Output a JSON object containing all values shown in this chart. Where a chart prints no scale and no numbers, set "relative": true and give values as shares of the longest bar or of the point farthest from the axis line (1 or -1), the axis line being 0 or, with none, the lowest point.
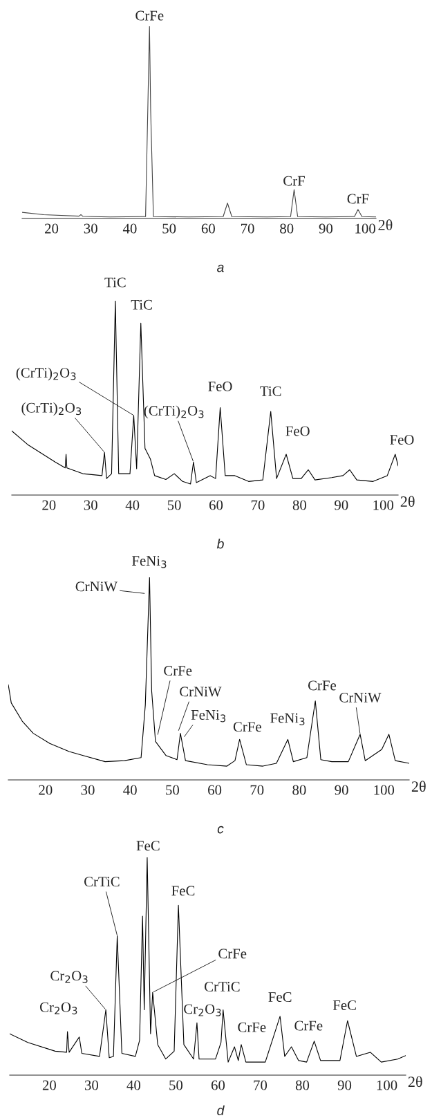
{
  "chart_data": [
    {
      "type": "line",
      "relative": true,
      "xlabel": "2θ",
      "xlim": [
        12.5,
        102.8
      ],
      "xticks": [
        20,
        30,
        40,
        50,
        60,
        70,
        80,
        90,
        100
      ],
      "series": [
        {
          "color": "#444444",
          "x": [
            12.5,
            18,
            27,
            27.5,
            28,
            35,
            43.5,
            44.0,
            44.6,
            45.0,
            45.3,
            46.0,
            55,
            63.8,
            64.9,
            66.0,
            75,
            81.0,
            81.9,
            82.8,
            90,
            97.3,
            98.2,
            99.2,
            102.8
          ],
          "values": [
            0.032,
            0.02,
            0.012,
            0.02,
            0.011,
            0.008,
            0.01,
            0.01,
            0.6,
            1.0,
            0.56,
            0.01,
            0.008,
            0.01,
            0.08,
            0.01,
            0.008,
            0.01,
            0.15,
            0.01,
            0.008,
            0.01,
            0.047,
            0.01,
            0.008
          ]
        }
      ],
      "annotations": [
        {
          "text": "CrFe",
          "x": 45.0,
          "y": 1.0
        },
        {
          "text": "CrF",
          "x": 81.9,
          "y": 0.15
        },
        {
          "text": "CrF",
          "x": 98.2,
          "y": 0.047
        },
        "a"
      ]
    },
    {
      "type": "line",
      "relative": true,
      "xlabel": "2θ",
      "xlim": [
        11.1,
        103.6
      ],
      "xticks": [
        20,
        30,
        40,
        50,
        60,
        70,
        80,
        90,
        100
      ],
      "series": [
        {
          "color": "#000000",
          "x": [
            11.1,
            14.9,
            21.5,
            23.9,
            24.1,
            24.3,
            28.1,
            32.7,
            33.3,
            33.8,
            35.0,
            35.9,
            36.7,
            39.4,
            40.3,
            41.0,
            42.0,
            43.0,
            44.3,
            45.3,
            48.0,
            50.0,
            52.0,
            53.9,
            54.6,
            55.3,
            58.6,
            59.9,
            61.0,
            62.2,
            64.5,
            67.8,
            71.2,
            73.1,
            74.5,
            76.8,
            78.4,
            80.4,
            82.1,
            83.7,
            87.7,
            90.4,
            92.0,
            93.7,
            97.6,
            101.0,
            102.9,
            103.6
          ],
          "values": [
            0.33,
            0.26,
            0.17,
            0.14,
            0.21,
            0.14,
            0.11,
            0.1,
            0.22,
            0.085,
            0.11,
            1.0,
            0.11,
            0.11,
            0.41,
            0.135,
            0.885,
            0.24,
            0.185,
            0.1,
            0.08,
            0.11,
            0.07,
            0.057,
            0.17,
            0.064,
            0.1,
            0.085,
            0.45,
            0.1,
            0.1,
            0.07,
            0.078,
            0.43,
            0.085,
            0.21,
            0.085,
            0.085,
            0.13,
            0.078,
            0.09,
            0.1,
            0.13,
            0.078,
            0.07,
            0.1,
            0.21,
            0.15
          ]
        }
      ],
      "annotations": [
        {
          "text": "TiC",
          "x": 35.9,
          "y": 1.0
        },
        {
          "text": "TiC",
          "x": 42.0,
          "y": 0.885
        },
        {
          "text": "(CrTi)$_{2}$O$_{3}$",
          "x": 40.3,
          "y": 0.41
        },
        {
          "text": "(CrTi)$_{2}$O$_{3}$",
          "x": 33.3,
          "y": 0.22
        },
        {
          "text": "(CrTi)$_{2}$O$_{3}$",
          "x": 54.6,
          "y": 0.17
        },
        {
          "text": "FeO",
          "x": 61.0,
          "y": 0.45
        },
        {
          "text": "TiC",
          "x": 73.1,
          "y": 0.43
        },
        {
          "text": "FeO",
          "x": 76.8,
          "y": 0.21
        },
        {
          "text": "FeO",
          "x": 102.9,
          "y": 0.21
        },
        "b"
      ]
    },
    {
      "type": "line",
      "relative": true,
      "xlabel": "2θ",
      "xlim": [
        11.2,
        106.0
      ],
      "xticks": [
        20,
        30,
        40,
        50,
        60,
        70,
        80,
        90,
        100
      ],
      "series": [
        {
          "color": "#000000",
          "x": [
            11.2,
            11.9,
            14.5,
            17.1,
            21.0,
            25.6,
            28.9,
            34.1,
            38.7,
            42.6,
            43.6,
            44.6,
            45.1,
            46.0,
            48.5,
            51.1,
            51.9,
            53.1,
            58.3,
            62.9,
            64.8,
            65.9,
            67.5,
            71.4,
            74.6,
            77.3,
            78.6,
            81.8,
            83.8,
            85.1,
            87.7,
            91.6,
            94.4,
            95.6,
            99.5,
            101.2,
            102.7,
            106.0
          ],
          "values": [
            0.47,
            0.38,
            0.29,
            0.23,
            0.18,
            0.14,
            0.12,
            0.09,
            0.095,
            0.11,
            0.37,
            1.0,
            0.44,
            0.19,
            0.12,
            0.1,
            0.23,
            0.095,
            0.075,
            0.068,
            0.095,
            0.2,
            0.075,
            0.068,
            0.082,
            0.2,
            0.09,
            0.11,
            0.39,
            0.1,
            0.09,
            0.09,
            0.225,
            0.095,
            0.15,
            0.225,
            0.095,
            0.082
          ]
        }
      ],
      "annotations": [
        {
          "text": "FeNi$_{3}$",
          "x": 44.6,
          "y": 1.0
        },
        {
          "text": "CrNiW",
          "x": 43.6,
          "y": 0.92
        },
        {
          "text": "CrFe",
          "x": 46.5,
          "y": 0.22
        },
        {
          "text": "CrNiW",
          "x": 51.4,
          "y": 0.24
        },
        {
          "text": "FeNi$_{3}$",
          "x": 52.7,
          "y": 0.21
        },
        {
          "text": "CrFe",
          "x": 65.9,
          "y": 0.2
        },
        {
          "text": "FeNi$_{3}$",
          "x": 77.3,
          "y": 0.2
        },
        {
          "text": "CrFe",
          "x": 83.8,
          "y": 0.39
        },
        {
          "text": "CrNiW",
          "x": 94.4,
          "y": 0.225
        },
        "c"
      ]
    },
    {
      "type": "line",
      "relative": true,
      "xlabel": "2θ",
      "xlim": [
        10.6,
        104.5
      ],
      "xticks": [
        20,
        30,
        40,
        50,
        60,
        70,
        80,
        90,
        100
      ],
      "series": [
        {
          "color": "#000000",
          "x": [
            10.6,
            14.9,
            21.4,
            24.1,
            24.3,
            24.7,
            27.1,
            27.7,
            31.9,
            33.4,
            34.2,
            35.2,
            36.1,
            37.2,
            40.4,
            41.4,
            42.1,
            42.5,
            43.2,
            44.0,
            44.5,
            45.7,
            47.6,
            49.6,
            50.6,
            51.9,
            54.2,
            55.0,
            55.5,
            59.4,
            60.7,
            61.2,
            62.4,
            63.9,
            64.8,
            65.5,
            66.6,
            71.2,
            73.2,
            74.7,
            75.8,
            77.4,
            79.1,
            81.0,
            82.8,
            84.3,
            88.9,
            90.7,
            92.8,
            96.1,
            98.7,
            102.6,
            104.5
          ],
          "values": [
            0.19,
            0.15,
            0.11,
            0.105,
            0.2,
            0.105,
            0.175,
            0.1,
            0.086,
            0.3,
            0.08,
            0.086,
            0.64,
            0.1,
            0.086,
            0.16,
            0.73,
            0.3,
            1.0,
            0.19,
            0.38,
            0.14,
            0.074,
            0.11,
            0.78,
            0.14,
            0.074,
            0.24,
            0.074,
            0.074,
            0.15,
            0.3,
            0.06,
            0.13,
            0.067,
            0.14,
            0.06,
            0.06,
            0.18,
            0.27,
            0.086,
            0.13,
            0.067,
            0.06,
            0.156,
            0.067,
            0.067,
            0.25,
            0.086,
            0.105,
            0.06,
            0.074,
            0.09
          ]
        }
      ],
      "annotations": [
        {
          "text": "Cr$_{2}$O$_{3}$",
          "x": 24.3,
          "y": 0.2
        },
        {
          "text": "Cr$_{2}$O$_{3}$",
          "x": 33.4,
          "y": 0.3
        },
        {
          "text": "CrTiC",
          "x": 36.1,
          "y": 0.64
        },
        {
          "text": "FeC",
          "x": 43.2,
          "y": 1.0
        },
        {
          "text": "FeC",
          "x": 50.6,
          "y": 0.78
        },
        {
          "text": "CrFe",
          "x": 44.5,
          "y": 0.38
        },
        {
          "text": "Cr$_{2}$O$_{3}$",
          "x": 55.0,
          "y": 0.24
        },
        {
          "text": "CrTiC",
          "x": 61.2,
          "y": 0.3
        },
        {
          "text": "CrFe",
          "x": 65.5,
          "y": 0.14
        },
        {
          "text": "FeC",
          "x": 74.7,
          "y": 0.27
        },
        {
          "text": "CrFe",
          "x": 82.8,
          "y": 0.156
        },
        {
          "text": "FeC",
          "x": 90.7,
          "y": 0.25
        },
        "d"
      ]
    }
  ]
}
